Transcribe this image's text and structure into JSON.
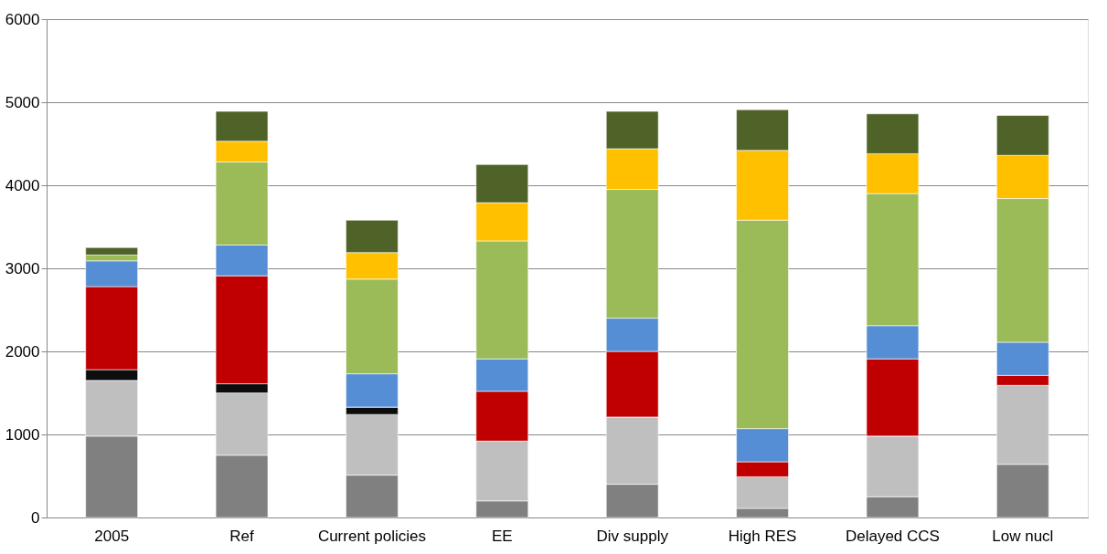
{
  "chart_data": {
    "type": "bar",
    "stacked": true,
    "grid": "y",
    "categories": [
      "2005",
      "Ref",
      "Current policies",
      "EE",
      "Div supply",
      "High RES",
      "Delayed CCS",
      "Low nucl"
    ],
    "ylim": [
      0,
      6000
    ],
    "yticks": [
      0,
      1000,
      2000,
      3000,
      4000,
      5000,
      6000
    ],
    "series": [
      {
        "color": "#808080",
        "values": [
          980,
          750,
          510,
          200,
          400,
          110,
          250,
          640
        ]
      },
      {
        "color": "#bfbfbf",
        "values": [
          670,
          750,
          730,
          720,
          810,
          380,
          730,
          950
        ]
      },
      {
        "color": "#0d0d0d",
        "values": [
          130,
          110,
          90,
          0,
          0,
          0,
          0,
          0
        ]
      },
      {
        "color": "#c00000",
        "values": [
          1000,
          1300,
          0,
          600,
          790,
          180,
          930,
          120
        ]
      },
      {
        "color": "#558ed5",
        "values": [
          310,
          370,
          400,
          390,
          400,
          400,
          400,
          400
        ]
      },
      {
        "color": "#9bbb59",
        "values": [
          70,
          1000,
          1140,
          1420,
          1550,
          2510,
          1590,
          1730
        ]
      },
      {
        "color": "#ffc000",
        "values": [
          0,
          250,
          320,
          460,
          490,
          840,
          480,
          520
        ]
      },
      {
        "color": "#4f6228",
        "values": [
          90,
          360,
          390,
          460,
          450,
          490,
          480,
          480
        ]
      }
    ]
  }
}
